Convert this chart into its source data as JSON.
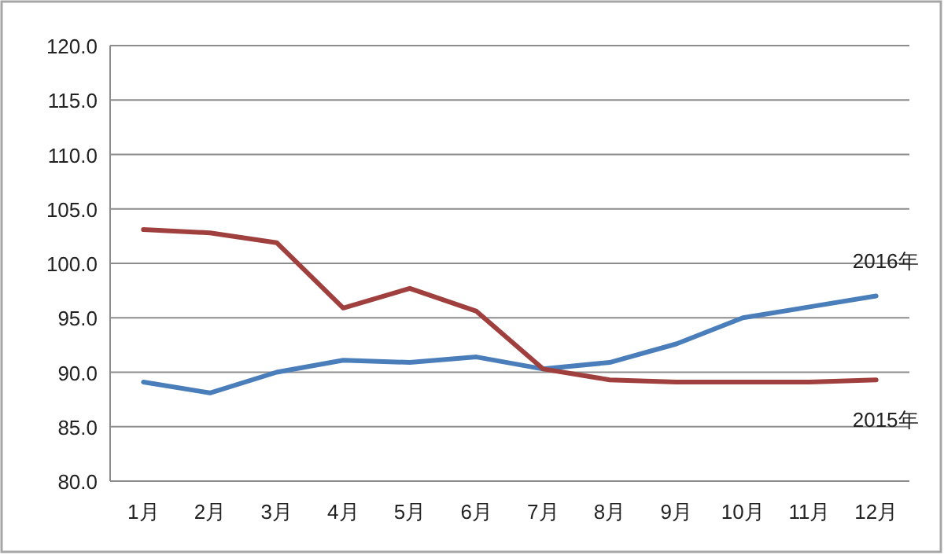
{
  "chart_data": {
    "type": "line",
    "categories": [
      "1月",
      "2月",
      "3月",
      "4月",
      "5月",
      "6月",
      "7月",
      "8月",
      "9月",
      "10月",
      "11月",
      "12月"
    ],
    "series": [
      {
        "name": "2016年",
        "color": "#4a7ebb",
        "values": [
          89.1,
          88.1,
          90.0,
          91.1,
          90.9,
          91.4,
          90.3,
          90.9,
          92.6,
          95.0,
          96.0,
          97.0
        ]
      },
      {
        "name": "2015年",
        "color": "#a0403e",
        "values": [
          103.1,
          102.8,
          101.9,
          95.9,
          97.7,
          95.6,
          90.3,
          89.3,
          89.1,
          89.1,
          89.1,
          89.3
        ]
      }
    ],
    "ylim": [
      80,
      120
    ],
    "yticks": [
      {
        "value": 80,
        "label": "80.0"
      },
      {
        "value": 85,
        "label": "85.0"
      },
      {
        "value": 90,
        "label": "90.0"
      },
      {
        "value": 95,
        "label": "95.0"
      },
      {
        "value": 100,
        "label": "100.0"
      },
      {
        "value": 105,
        "label": "105.0"
      },
      {
        "value": 110,
        "label": "110.0"
      },
      {
        "value": 115,
        "label": "115.0"
      },
      {
        "value": 120,
        "label": "120.0"
      }
    ],
    "grid": "y",
    "legend": false,
    "marker": "none",
    "line_style": "solid"
  }
}
